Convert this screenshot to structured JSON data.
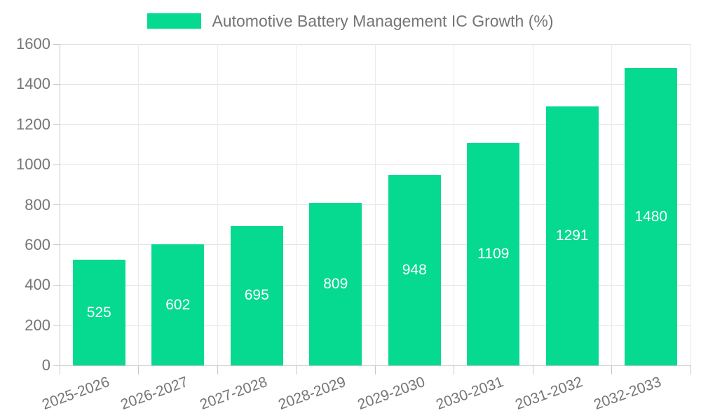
{
  "chart_data": {
    "type": "bar",
    "title": "Automotive Battery Management IC Growth (%)",
    "categories": [
      "2025-2026",
      "2026-2027",
      "2027-2028",
      "2028-2029",
      "2029-2030",
      "2030-2031",
      "2031-2032",
      "2032-2033"
    ],
    "values": [
      525,
      602,
      695,
      809,
      948,
      1109,
      1291,
      1480
    ],
    "xlabel": "",
    "ylabel": "",
    "ylim": [
      0,
      1600
    ],
    "ytick_step": 200,
    "ytick_labels": [
      "0",
      "200",
      "400",
      "600",
      "800",
      "1000",
      "1200",
      "1400",
      "1600"
    ],
    "grid": true,
    "legend_position": "top-center",
    "bar_color": "#06da90",
    "value_label_color": "#ffffff"
  },
  "legend": {
    "label": "Automotive Battery Management IC Growth (%)",
    "swatch_color": "#06da90"
  },
  "colors": {
    "background": "#ffffff",
    "axis_line": "#c8c8c8",
    "gridline_h": "#e2e2e2",
    "gridline_v": "#ebebeb",
    "axis_text": "#757575",
    "bar": "#06da90",
    "value_text": "#ffffff"
  }
}
